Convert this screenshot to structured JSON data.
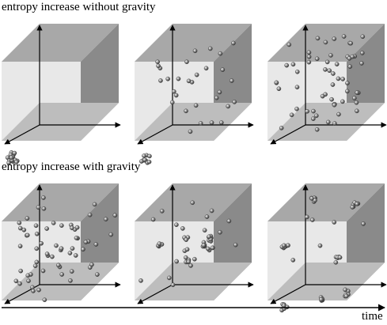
{
  "captions": {
    "top": "entropy increase without gravity",
    "bottom": "entropy increase with gravity"
  },
  "time_axis": {
    "label": "time"
  },
  "colors": {
    "top_face": "#a8a8a8",
    "right_face": "#8a8a8a",
    "back_face": "#e8e8e8",
    "floor_face": "#bdbdbd",
    "left_face": "#d2d2d2",
    "particle": "#5a5a5a",
    "axis": "#000000"
  },
  "panels": [
    {
      "row": "top",
      "stage": 1,
      "particle_distribution": "single cluster in corner"
    },
    {
      "row": "top",
      "stage": 2,
      "particle_distribution": "partially spread"
    },
    {
      "row": "top",
      "stage": 3,
      "particle_distribution": "uniformly spread"
    },
    {
      "row": "bottom",
      "stage": 1,
      "particle_distribution": "uniformly spread"
    },
    {
      "row": "bottom",
      "stage": 2,
      "particle_distribution": "small clumps forming"
    },
    {
      "row": "bottom",
      "stage": 3,
      "particle_distribution": "few dense clumps"
    }
  ]
}
